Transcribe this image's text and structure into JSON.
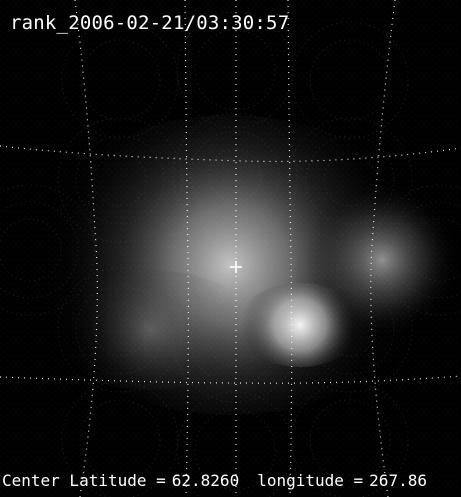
{
  "image": {
    "timestamp_text": "rank_2006-02-21/03:30:57",
    "colors": {
      "background": "#000000",
      "foreground": "#ffffff",
      "glow": "#cfcfcf"
    },
    "icon_names": [
      "crosshair-icon"
    ]
  },
  "footer": {
    "latitude_label": "Center Latitude =",
    "latitude_value": "62.8260",
    "longitude_label": "longitude =",
    "longitude_value": "267.86"
  }
}
